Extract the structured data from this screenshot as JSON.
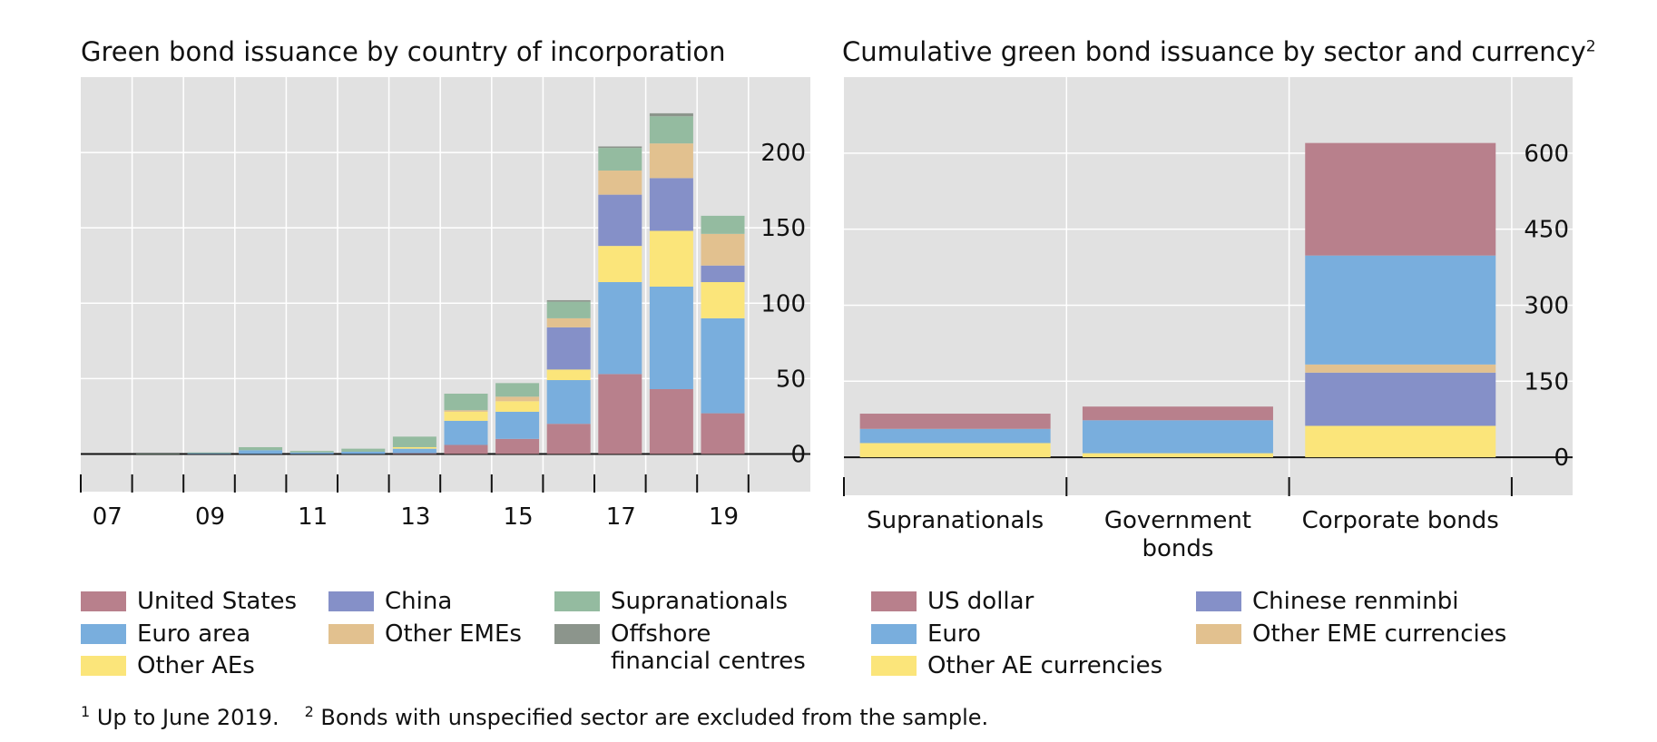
{
  "colors": {
    "united_states": "#b8808c",
    "euro_area": "#79aedd",
    "other_aes": "#fbe57a",
    "china": "#8590c8",
    "other_emes": "#e2c18f",
    "supranationals": "#94bba0",
    "offshore": "#8c958c",
    "panel_bg": "#e1e1e1"
  },
  "left_panel": {
    "title": "Green bond issuance by country of incorporation"
  },
  "right_panel": {
    "title": "Cumulative green bond issuance by sector and currency",
    "title_sup": "2"
  },
  "legend_left": [
    {
      "key": "united_states",
      "label": "United States"
    },
    {
      "key": "euro_area",
      "label": "Euro area"
    },
    {
      "key": "other_aes",
      "label": "Other AEs"
    },
    {
      "key": "china",
      "label": "China"
    },
    {
      "key": "other_emes",
      "label": "Other EMEs"
    },
    {
      "key": "supranationals",
      "label": "Supranationals"
    },
    {
      "key": "offshore",
      "label": "Offshore financial centres"
    }
  ],
  "legend_right": [
    {
      "key": "united_states",
      "label": "US dollar"
    },
    {
      "key": "euro_area",
      "label": "Euro"
    },
    {
      "key": "other_aes",
      "label": "Other AE currencies"
    },
    {
      "key": "china",
      "label": "Chinese renminbi"
    },
    {
      "key": "other_emes",
      "label": "Other EME currencies"
    }
  ],
  "footnotes": [
    {
      "sup": "1",
      "text": "Up to June 2019."
    },
    {
      "sup": "2",
      "text": "Bonds with unspecified sector are excluded from the sample."
    }
  ],
  "chart_data": [
    {
      "type": "bar",
      "stacked": true,
      "title": "Green bond issuance by country of incorporation",
      "categories": [
        "07",
        "08",
        "09",
        "10",
        "11",
        "12",
        "13",
        "14",
        "15",
        "16",
        "17",
        "18",
        "19"
      ],
      "x_tick_labels": [
        "07",
        "09",
        "11",
        "13",
        "15",
        "17",
        "19"
      ],
      "ylim": [
        -25,
        250
      ],
      "y_ticks": [
        0,
        50,
        100,
        150,
        200
      ],
      "grid": true,
      "series": [
        {
          "key": "united_states",
          "name": "United States",
          "values": [
            0,
            0,
            0,
            0,
            0,
            0,
            0.5,
            6,
            10,
            20,
            53,
            43,
            27
          ]
        },
        {
          "key": "euro_area",
          "name": "Euro area",
          "values": [
            0,
            0,
            0.5,
            2.5,
            1,
            1.5,
            3,
            16,
            18,
            29,
            61,
            68,
            63
          ]
        },
        {
          "key": "other_aes",
          "name": "Other AEs",
          "values": [
            0,
            0,
            0,
            0,
            0,
            0,
            1,
            6,
            7,
            7,
            24,
            37,
            24
          ]
        },
        {
          "key": "china",
          "name": "China",
          "values": [
            0,
            0,
            0,
            0,
            0,
            0,
            0,
            0,
            0,
            28,
            34,
            35,
            11
          ]
        },
        {
          "key": "other_emes",
          "name": "Other EMEs",
          "values": [
            0,
            0,
            0,
            0,
            0,
            0,
            0,
            1,
            3,
            6,
            16,
            23,
            21
          ]
        },
        {
          "key": "supranationals",
          "name": "Supranationals",
          "values": [
            0,
            0.3,
            0.5,
            2,
            1,
            2,
            7,
            11,
            9,
            11,
            15,
            18,
            12
          ]
        },
        {
          "key": "offshore",
          "name": "Offshore financial centres",
          "values": [
            0,
            0,
            0,
            0,
            0,
            0,
            0,
            0,
            0,
            1,
            1,
            2,
            0
          ]
        }
      ]
    },
    {
      "type": "bar",
      "stacked": true,
      "title": "Cumulative green bond issuance by sector and currency",
      "categories": [
        "Supranationals",
        "Government bonds",
        "Corporate bonds"
      ],
      "category_lines": [
        [
          "Supranationals"
        ],
        [
          "Government",
          "bonds"
        ],
        [
          "Corporate bonds"
        ]
      ],
      "ylim": [
        -75,
        750
      ],
      "y_ticks": [
        0,
        150,
        300,
        450,
        600
      ],
      "grid": true,
      "series": [
        {
          "key": "other_aes",
          "name": "Other AE currencies",
          "values": [
            28,
            8,
            62
          ]
        },
        {
          "key": "china",
          "name": "Chinese renminbi",
          "values": [
            0,
            0,
            105
          ]
        },
        {
          "key": "other_emes",
          "name": "Other EME currencies",
          "values": [
            0,
            0,
            16
          ]
        },
        {
          "key": "euro_area",
          "name": "Euro",
          "values": [
            28,
            65,
            215
          ]
        },
        {
          "key": "united_states",
          "name": "US dollar",
          "values": [
            30,
            27,
            222
          ]
        }
      ]
    }
  ]
}
